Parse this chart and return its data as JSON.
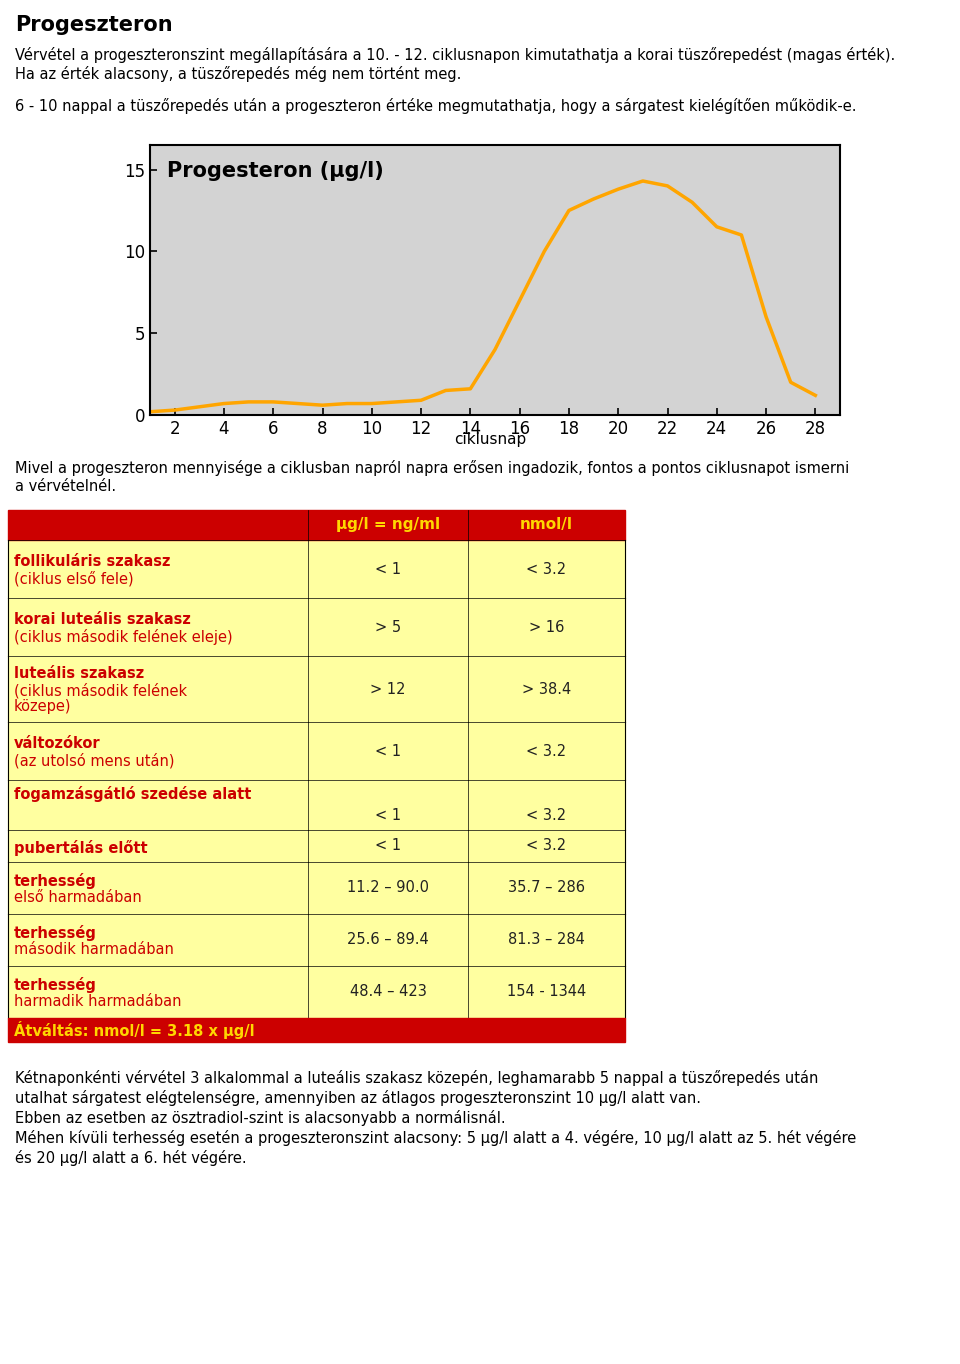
{
  "title": "Progeszteron",
  "para1_line1": "Vérvétel a progeszteronszint megállapítására a 10. - 12. ciklusnapon kimutathatja a korai tüszőrepedést (magas érték).",
  "para1_line2": "Ha az érték alacsony, a tüszőrepedés még nem történt meg.",
  "para2": "6 - 10 nappal a tüszőrepedés után a progeszteron értéke megmutathatja, hogy a sárgatest kielégítően működik-e.",
  "chart_title": "Progesteron (μg/l)",
  "xlabel": "ciklusnap",
  "x_data": [
    1,
    2,
    3,
    4,
    5,
    6,
    7,
    8,
    9,
    10,
    11,
    12,
    13,
    14,
    15,
    16,
    17,
    18,
    19,
    20,
    21,
    22,
    23,
    24,
    25,
    26,
    27,
    28
  ],
  "y_data": [
    0.2,
    0.3,
    0.5,
    0.7,
    0.8,
    0.8,
    0.7,
    0.6,
    0.7,
    0.7,
    0.8,
    0.9,
    1.5,
    1.6,
    4.0,
    7.0,
    10.0,
    12.5,
    13.2,
    13.8,
    14.3,
    14.0,
    13.0,
    11.5,
    11.0,
    6.0,
    2.0,
    1.2
  ],
  "line_color": "#FFA500",
  "bg_color": "#D3D3D3",
  "yticks": [
    0,
    5,
    10,
    15
  ],
  "xticks": [
    2,
    4,
    6,
    8,
    10,
    12,
    14,
    16,
    18,
    20,
    22,
    24,
    26,
    28
  ],
  "ylim": [
    0,
    16.5
  ],
  "xlim": [
    1,
    29
  ],
  "para3_line1": "Mivel a progeszteron mennyisége a ciklusban napról napra erősen ingadozik, fontos a pontos ciklusnapot ismerni",
  "para3_line2": "a vérvételnél.",
  "table_header_col1": "μg/l = ng/ml",
  "table_header_col2": "nmol/l",
  "table_header_bg": "#CC0000",
  "table_header_fg": "#FFD700",
  "table_row_bg": "#FFFFA0",
  "table_label_fg": "#CC0000",
  "table_value_fg": "#222222",
  "table_footer": "Átváltás: nmol/l = 3.18 x μg/l",
  "table_footer_bg": "#CC0000",
  "table_footer_fg": "#FFD700",
  "para4_line1": "Kétnaponkénti vérvétel 3 alkalommal a luteális szakasz közepén, leghamarabb 5 nappal a tüszőrepedés után",
  "para4_line2": "utalhat sárgatest elégtelenségre, amennyiben az átlagos progeszteronszint 10 μg/l alatt van.",
  "para4_line3": "Ebben az esetben az ösztradiol-szint is alacsonyabb a normálisnál.",
  "para4_line4": "Méhen kívüli terhesség esetén a progeszteronszint alacsony: 5 μg/l alatt a 4. végére, 10 μg/l alatt az 5. hét végére",
  "para4_line5": "és 20 μg/l alatt a 6. hét végére."
}
